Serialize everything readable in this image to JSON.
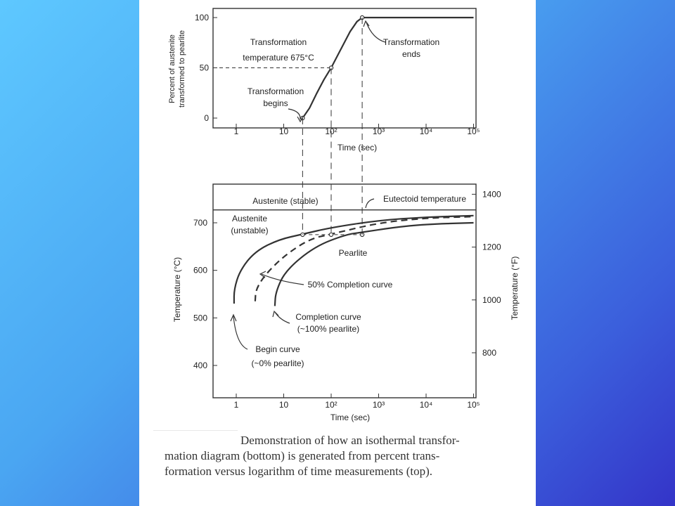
{
  "chart_data": [
    {
      "type": "line",
      "title": "",
      "xlabel": "Time (sec)",
      "ylabel": "Percent of austenite transformed to pearlite",
      "x_scale": "log",
      "xlim": [
        0.5,
        100000
      ],
      "ylim": [
        0,
        100
      ],
      "x_ticks": [
        "1",
        "10",
        "10²",
        "10³",
        "10⁴",
        "10⁵"
      ],
      "y_ticks": [
        "0",
        "50",
        "100"
      ],
      "series": [
        {
          "values": [
            [
              25,
              0
            ],
            [
              35,
              10
            ],
            [
              50,
              25
            ],
            [
              70,
              38
            ],
            [
              100,
              50
            ],
            [
              150,
              66
            ],
            [
              250,
              86
            ],
            [
              350,
              96
            ],
            [
              450,
              100
            ],
            [
              100000,
              100
            ]
          ]
        }
      ],
      "annotations": [
        "Transformation temperature 675°C",
        "Transformation begins",
        "Transformation ends"
      ]
    },
    {
      "type": "line",
      "title": "",
      "xlabel": "Time (sec)",
      "ylabel": "Temperature (°C)",
      "ylabel_right": "Temperature (°F)",
      "x_scale": "log",
      "xlim": [
        0.5,
        100000
      ],
      "ylim": [
        350,
        750
      ],
      "x_ticks": [
        "1",
        "10",
        "10²",
        "10³",
        "10⁴",
        "10⁵"
      ],
      "y_ticks": [
        "400",
        "500",
        "600",
        "700"
      ],
      "y_ticks_right": [
        "800",
        "1000",
        "1200",
        "1400"
      ],
      "eutectoid_temperature": 727,
      "series": [
        {
          "name": "Begin curve",
          "sub": "(~0% pearlite)",
          "values": [
            [
              0.9,
              530
            ],
            [
              0.9,
              560
            ],
            [
              1.2,
              600
            ],
            [
              2.5,
              640
            ],
            [
              8,
              665
            ],
            [
              25,
              676
            ],
            [
              100,
              690
            ],
            [
              1000,
              705
            ],
            [
              10000,
              712
            ],
            [
              100000,
              715
            ]
          ]
        },
        {
          "name": "50% Completion curve",
          "values": [
            [
              2.5,
              535
            ],
            [
              2.6,
              560
            ],
            [
              4,
              590
            ],
            [
              10,
              630
            ],
            [
              35,
              666
            ],
            [
              100,
              676
            ],
            [
              1000,
              700
            ],
            [
              10000,
              710
            ],
            [
              100000,
              713
            ]
          ]
        },
        {
          "name": "Completion curve",
          "sub": "(~100% pearlite)",
          "values": [
            [
              6.5,
              525
            ],
            [
              6.8,
              555
            ],
            [
              11,
              600
            ],
            [
              45,
              650
            ],
            [
              200,
              675
            ],
            [
              450,
              680
            ],
            [
              2000,
              690
            ],
            [
              10000,
              697
            ],
            [
              100000,
              700
            ]
          ]
        }
      ],
      "region_labels": [
        "Austenite (stable)",
        "Austenite",
        "(unstable)",
        "Pearlite"
      ],
      "annotations": [
        "Eutectoid temperature"
      ]
    }
  ],
  "caption": {
    "lines": [
      "Demonstration of how an isothermal transfor-",
      "mation diagram (bottom) is generated from percent trans-",
      "formation versus logarithm of time measurements (top)."
    ]
  }
}
